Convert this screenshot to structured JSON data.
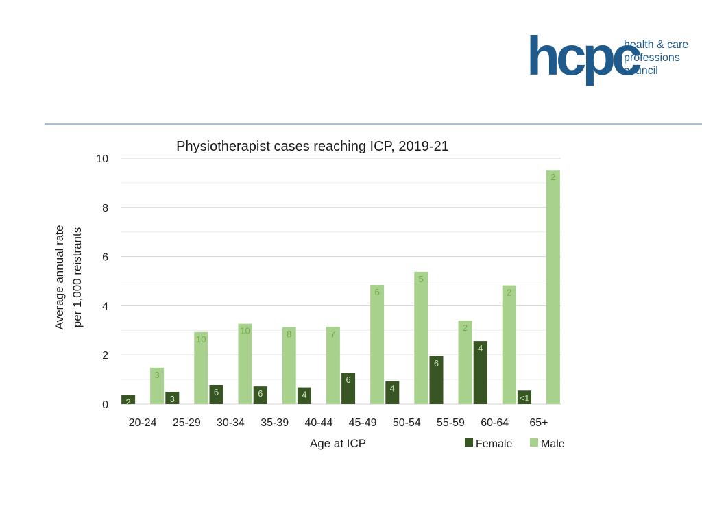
{
  "logo": {
    "mark": "hcpc",
    "words": [
      "health & care",
      "professions",
      "council"
    ],
    "color": "#1f5a8c"
  },
  "chart_data": {
    "type": "bar",
    "title": "Physiotherapist cases reaching ICP, 2019-21",
    "xlabel": "Age at ICP",
    "ylabel": [
      "Average annual rate",
      "per 1,000 reistrants"
    ],
    "ylim": [
      0,
      10
    ],
    "yticks": [
      0,
      2,
      4,
      6,
      8,
      10
    ],
    "grid": true,
    "legend_position": "bottom-right",
    "categories": [
      "20-24",
      "25-29",
      "30-34",
      "35-39",
      "40-44",
      "45-49",
      "50-54",
      "55-59",
      "60-64",
      "65+"
    ],
    "series": [
      {
        "name": "Female",
        "color": "#375623",
        "label_color": "#c9e3b4",
        "values": [
          0.38,
          0.5,
          0.78,
          0.72,
          0.68,
          1.28,
          0.93,
          1.95,
          2.56,
          0.55
        ],
        "labels": [
          "2",
          "3",
          "6",
          "6",
          "4",
          "6",
          "4",
          "6",
          "4",
          "<1"
        ]
      },
      {
        "name": "Male",
        "color": "#a9d18e",
        "label_color": "#70ad47",
        "values": [
          1.48,
          2.93,
          3.27,
          3.13,
          3.15,
          4.85,
          5.38,
          3.4,
          4.83,
          9.52
        ],
        "labels": [
          "3",
          "10",
          "10",
          "8",
          "7",
          "6",
          "5",
          "2",
          "2",
          "2"
        ]
      }
    ]
  }
}
